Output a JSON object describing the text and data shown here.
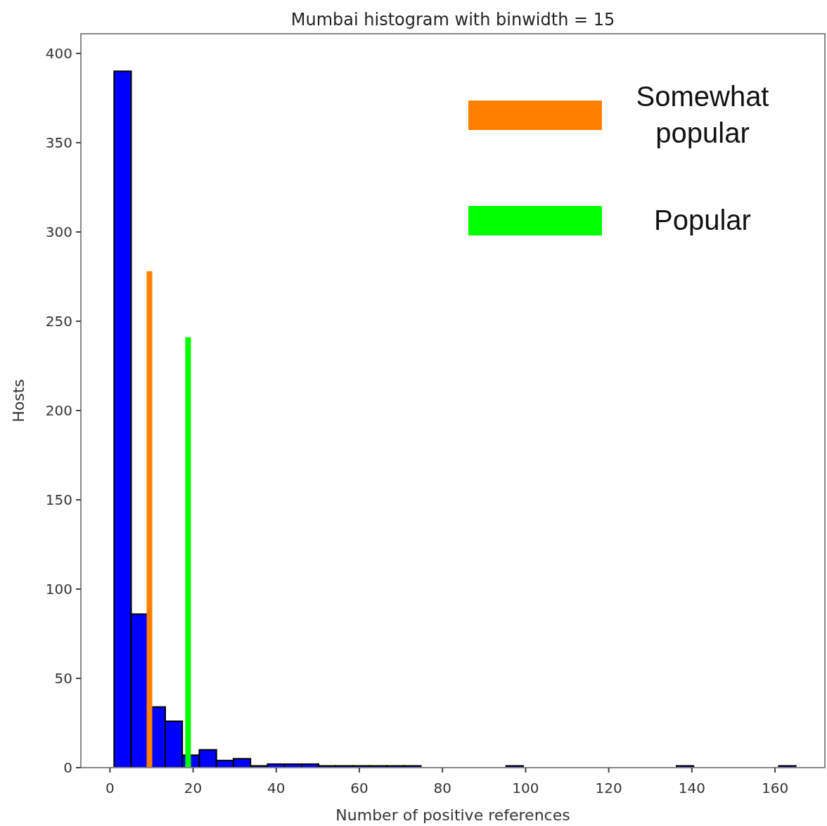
{
  "chart_data": {
    "type": "histogram",
    "title": "Mumbai histogram with binwidth = 15",
    "xlabel": "Number of positive references",
    "ylabel": "Hosts",
    "xlim": [
      -7,
      172
    ],
    "ylim": [
      0,
      411
    ],
    "xticks": [
      0,
      20,
      40,
      60,
      80,
      100,
      120,
      140,
      160
    ],
    "yticks": [
      0,
      50,
      100,
      150,
      200,
      250,
      300,
      350,
      400
    ],
    "grid": false,
    "legend": "top right",
    "series": [
      {
        "color": "#0000ff",
        "bins": [
          1,
          5.1,
          9.2,
          13.3,
          17.4,
          21.5,
          25.6,
          29.7,
          33.8,
          37.9,
          42,
          46.1,
          50.2,
          54.3,
          58.4,
          62.5,
          66.6,
          70.7,
          74.8,
          78.9,
          83,
          87.1,
          91.2,
          95.3,
          99.4,
          103.5,
          107.6,
          111.7,
          115.8,
          119.9,
          124,
          128.1,
          132.2,
          136.3,
          140.4,
          144.5,
          148.6,
          152.7,
          156.8,
          160.9,
          165
        ],
        "values": [
          390,
          86,
          34,
          26,
          7,
          10,
          4,
          5,
          1,
          2,
          2,
          2,
          1,
          1,
          1,
          1,
          1,
          1,
          0,
          0,
          0,
          0,
          0,
          1,
          0,
          0,
          0,
          0,
          0,
          0,
          0,
          0,
          0,
          1,
          0,
          0,
          0,
          0,
          0,
          1
        ]
      },
      {
        "type": "bar",
        "name": "Somewhat popular",
        "color": "#ff8000",
        "x": [
          9.5
        ],
        "values": [
          278
        ]
      },
      {
        "type": "bar",
        "name": "Popular",
        "color": "#00ff00",
        "x": [
          18.8
        ],
        "values": [
          241
        ]
      }
    ]
  }
}
